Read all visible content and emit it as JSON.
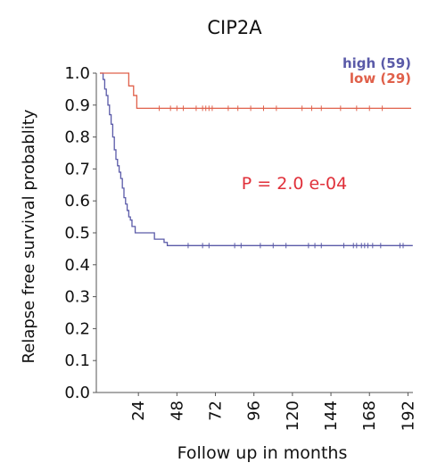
{
  "chart_data": {
    "type": "line",
    "subtype": "kaplan-meier",
    "title": "CIP2A",
    "xlabel": "Follow up in months",
    "ylabel": "Relapse free  survival probablity",
    "xlim": [
      0,
      194
    ],
    "ylim": [
      0,
      1
    ],
    "x_ticks": [
      24,
      48,
      72,
      96,
      120,
      144,
      168,
      192
    ],
    "y_ticks": [
      0.0,
      0.1,
      0.2,
      0.3,
      0.4,
      0.5,
      0.6,
      0.7,
      0.8,
      0.9,
      1.0
    ],
    "y_tick_labels": [
      "0.0",
      "0.1",
      "0.2",
      "0.3",
      "0.4",
      "0.5",
      "0.6",
      "0.7",
      "0.8",
      "0.9",
      "1.0"
    ],
    "grid": false,
    "legend_position": "top-right",
    "annotation": "P = 2.0 e-04",
    "series": [
      {
        "name": "high (59)",
        "color": "#5a5aa8",
        "steps": [
          [
            0,
            1.0
          ],
          [
            2,
            0.98
          ],
          [
            3,
            0.95
          ],
          [
            4,
            0.93
          ],
          [
            5,
            0.9
          ],
          [
            6,
            0.87
          ],
          [
            7,
            0.84
          ],
          [
            8,
            0.8
          ],
          [
            9,
            0.76
          ],
          [
            10,
            0.73
          ],
          [
            11,
            0.71
          ],
          [
            12,
            0.69
          ],
          [
            13,
            0.67
          ],
          [
            14,
            0.64
          ],
          [
            15,
            0.61
          ],
          [
            16,
            0.59
          ],
          [
            17,
            0.57
          ],
          [
            18,
            0.55
          ],
          [
            19,
            0.54
          ],
          [
            20,
            0.52
          ],
          [
            22,
            0.5
          ],
          [
            34,
            0.48
          ],
          [
            40,
            0.47
          ],
          [
            42,
            0.46
          ],
          [
            195,
            0.46
          ]
        ],
        "censored": [
          [
            55,
            0.46
          ],
          [
            64,
            0.46
          ],
          [
            68,
            0.46
          ],
          [
            84,
            0.46
          ],
          [
            88,
            0.46
          ],
          [
            100,
            0.46
          ],
          [
            108,
            0.46
          ],
          [
            116,
            0.46
          ],
          [
            130,
            0.46
          ],
          [
            134,
            0.46
          ],
          [
            138,
            0.46
          ],
          [
            152,
            0.46
          ],
          [
            158,
            0.46
          ],
          [
            160,
            0.46
          ],
          [
            163,
            0.46
          ],
          [
            165,
            0.46
          ],
          [
            167,
            0.46
          ],
          [
            170,
            0.46
          ],
          [
            175,
            0.46
          ],
          [
            187,
            0.46
          ],
          [
            189,
            0.46
          ]
        ]
      },
      {
        "name": "low (29)",
        "color": "#e0604a",
        "steps": [
          [
            0,
            1.0
          ],
          [
            18,
            0.96
          ],
          [
            21,
            0.93
          ],
          [
            23,
            0.89
          ],
          [
            194,
            0.89
          ]
        ],
        "censored": [
          [
            37,
            0.89
          ],
          [
            44,
            0.89
          ],
          [
            48,
            0.89
          ],
          [
            52,
            0.89
          ],
          [
            60,
            0.89
          ],
          [
            64,
            0.89
          ],
          [
            66,
            0.89
          ],
          [
            68,
            0.89
          ],
          [
            70,
            0.89
          ],
          [
            80,
            0.89
          ],
          [
            86,
            0.89
          ],
          [
            94,
            0.89
          ],
          [
            102,
            0.89
          ],
          [
            110,
            0.89
          ],
          [
            126,
            0.89
          ],
          [
            132,
            0.89
          ],
          [
            138,
            0.89
          ],
          [
            150,
            0.89
          ],
          [
            160,
            0.89
          ],
          [
            168,
            0.89
          ],
          [
            176,
            0.89
          ]
        ]
      }
    ]
  }
}
